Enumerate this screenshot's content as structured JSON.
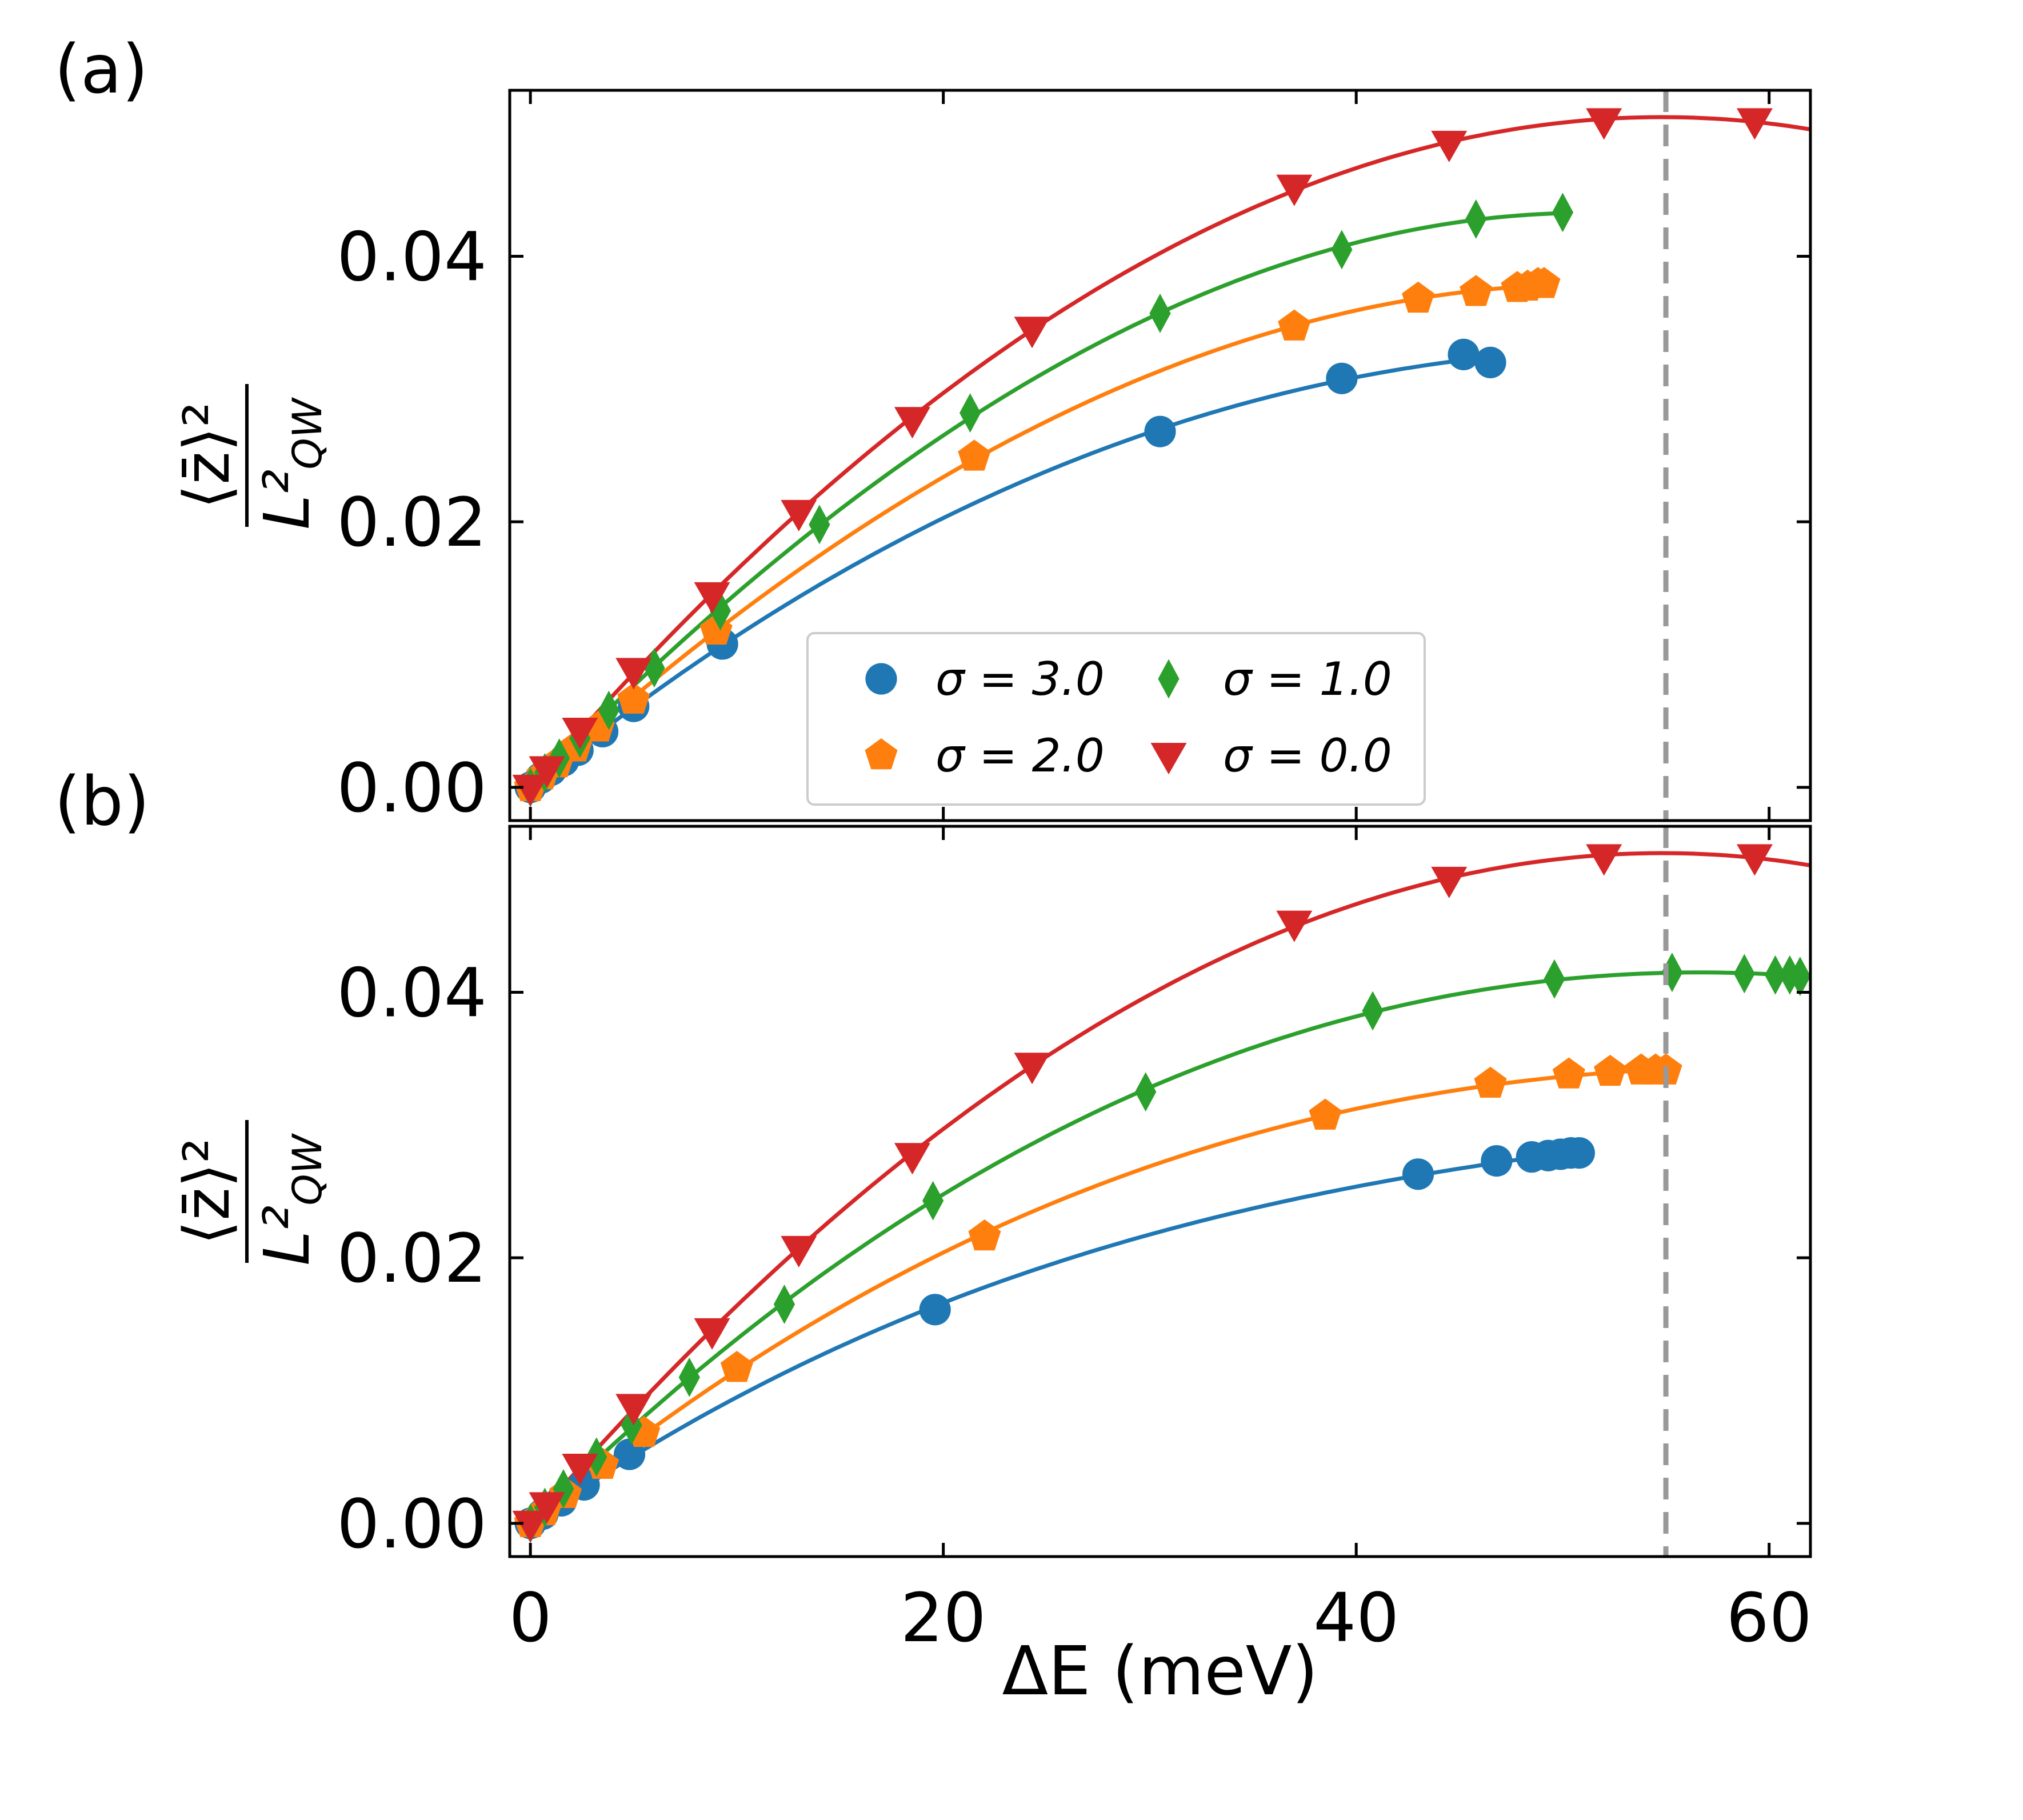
{
  "figure": {
    "xlabel": "ΔE (meV)",
    "ylabel_numerator": "⟨z̄⟩²",
    "ylabel_denominator": "L²",
    "ylabel_subscript": "QW",
    "dashed_line_x": 55,
    "dashed_line_color": "#999999"
  },
  "legend": {
    "entries": [
      {
        "label": "σ = 3.0",
        "color": "#1f77b4",
        "marker": "circle"
      },
      {
        "label": "σ = 1.0",
        "color": "#2ca02c",
        "marker": "diamond"
      },
      {
        "label": "σ = 2.0",
        "color": "#ff7f0e",
        "marker": "pentagon"
      },
      {
        "label": "σ = 0.0",
        "color": "#d62728",
        "marker": "triangle-down"
      }
    ]
  },
  "chart_data": [
    {
      "panel": "(a)",
      "type": "line",
      "xlim": [
        -1,
        62
      ],
      "ylim": [
        -0.0025,
        0.0525
      ],
      "xticks": [
        0,
        20,
        40,
        60
      ],
      "yticks": [
        0.0,
        0.02,
        0.04
      ],
      "ytick_labels": [
        "0.00",
        "0.02",
        "0.04"
      ],
      "series": [
        {
          "name": "σ = 3.0",
          "color": "#1f77b4",
          "marker": "circle",
          "points": [
            [
              0,
              0
            ],
            [
              0.5,
              0.0007
            ],
            [
              1.0,
              0.0013
            ],
            [
              1.6,
              0.002
            ],
            [
              2.3,
              0.0028
            ],
            [
              3.5,
              0.0042
            ],
            [
              5.0,
              0.0061
            ],
            [
              9.3,
              0.0108
            ],
            [
              30.5,
              0.0268
            ],
            [
              39.3,
              0.0308
            ],
            [
              45.2,
              0.0326
            ],
            [
              46.5,
              0.032
            ]
          ],
          "curve_x_end": 46.5
        },
        {
          "name": "σ = 2.0",
          "color": "#ff7f0e",
          "marker": "pentagon",
          "points": [
            [
              0,
              0
            ],
            [
              0.6,
              0.0009
            ],
            [
              1.3,
              0.0018
            ],
            [
              2.2,
              0.003
            ],
            [
              3.3,
              0.0045
            ],
            [
              5.0,
              0.0066
            ],
            [
              9.0,
              0.0118
            ],
            [
              21.5,
              0.0249
            ],
            [
              37.0,
              0.0347
            ],
            [
              43.0,
              0.0368
            ],
            [
              45.8,
              0.0373
            ],
            [
              47.8,
              0.0376
            ],
            [
              48.3,
              0.0377
            ],
            [
              48.8,
              0.0379
            ],
            [
              49.1,
              0.0379
            ]
          ],
          "curve_x_end": 49.1
        },
        {
          "name": "σ = 1.0",
          "color": "#2ca02c",
          "marker": "diamond",
          "points": [
            [
              0,
              0
            ],
            [
              0.7,
              0.0011
            ],
            [
              1.4,
              0.0022
            ],
            [
              2.4,
              0.0037
            ],
            [
              3.8,
              0.0058
            ],
            [
              6.0,
              0.009
            ],
            [
              9.2,
              0.0133
            ],
            [
              14.0,
              0.0198
            ],
            [
              21.3,
              0.0282
            ],
            [
              30.5,
              0.0357
            ],
            [
              39.3,
              0.0405
            ],
            [
              45.8,
              0.0428
            ],
            [
              50.0,
              0.0433
            ]
          ],
          "curve_x_end": 50.0
        },
        {
          "name": "σ = 0.0",
          "color": "#d62728",
          "marker": "triangle-down",
          "points": [
            [
              0,
              0
            ],
            [
              0.8,
              0.0014
            ],
            [
              2.4,
              0.0043
            ],
            [
              5.0,
              0.0088
            ],
            [
              8.8,
              0.0145
            ],
            [
              13.0,
              0.0207
            ],
            [
              18.5,
              0.0277
            ],
            [
              24.3,
              0.0345
            ],
            [
              37.0,
              0.0452
            ],
            [
              44.5,
              0.0485
            ],
            [
              52.0,
              0.0502
            ],
            [
              59.3,
              0.0502
            ]
          ],
          "curve_x_end": 62.0
        }
      ]
    },
    {
      "panel": "(b)",
      "type": "line",
      "xlim": [
        -1,
        62
      ],
      "ylim": [
        -0.0025,
        0.0525
      ],
      "xticks": [
        0,
        20,
        40,
        60
      ],
      "xtick_labels": [
        "0",
        "20",
        "40",
        "60"
      ],
      "yticks": [
        0.0,
        0.02,
        0.04
      ],
      "ytick_labels": [
        "0.00",
        "0.02",
        "0.04"
      ],
      "series": [
        {
          "name": "σ = 3.0",
          "color": "#1f77b4",
          "marker": "circle",
          "points": [
            [
              0,
              0
            ],
            [
              0.6,
              0.0007
            ],
            [
              1.5,
              0.0017
            ],
            [
              2.6,
              0.0029
            ],
            [
              4.8,
              0.0052
            ],
            [
              19.6,
              0.0161
            ],
            [
              43.0,
              0.0263
            ],
            [
              46.8,
              0.0273
            ],
            [
              48.5,
              0.0276
            ],
            [
              49.3,
              0.0277
            ],
            [
              49.9,
              0.0278
            ],
            [
              50.4,
              0.0279
            ],
            [
              50.8,
              0.0279
            ]
          ],
          "curve_x_end": 50.8
        },
        {
          "name": "σ = 2.0",
          "color": "#ff7f0e",
          "marker": "pentagon",
          "points": [
            [
              0,
              0
            ],
            [
              0.7,
              0.0009
            ],
            [
              1.7,
              0.0022
            ],
            [
              3.5,
              0.0044
            ],
            [
              5.5,
              0.0068
            ],
            [
              10.0,
              0.0117
            ],
            [
              22.0,
              0.0216
            ],
            [
              38.5,
              0.0307
            ],
            [
              46.5,
              0.0331
            ],
            [
              50.3,
              0.0338
            ],
            [
              52.3,
              0.034
            ],
            [
              53.8,
              0.0341
            ],
            [
              54.5,
              0.0341
            ],
            [
              55.0,
              0.0341
            ]
          ],
          "curve_x_end": 55.0
        },
        {
          "name": "σ = 1.0",
          "color": "#2ca02c",
          "marker": "diamond",
          "points": [
            [
              0,
              0
            ],
            [
              0.7,
              0.0012
            ],
            [
              1.6,
              0.0026
            ],
            [
              3.2,
              0.005
            ],
            [
              4.9,
              0.0074
            ],
            [
              7.7,
              0.011
            ],
            [
              12.3,
              0.0165
            ],
            [
              19.5,
              0.0243
            ],
            [
              29.8,
              0.0325
            ],
            [
              40.8,
              0.0386
            ],
            [
              49.6,
              0.041
            ],
            [
              55.3,
              0.0415
            ],
            [
              58.8,
              0.0414
            ],
            [
              60.3,
              0.0413
            ],
            [
              61.0,
              0.0413
            ],
            [
              61.5,
              0.0412
            ]
          ],
          "curve_x_end": 61.5
        },
        {
          "name": "σ = 0.0",
          "color": "#d62728",
          "marker": "triangle-down",
          "points": [
            [
              0,
              0
            ],
            [
              0.8,
              0.0014
            ],
            [
              2.4,
              0.0043
            ],
            [
              5.0,
              0.0088
            ],
            [
              8.8,
              0.0145
            ],
            [
              13.0,
              0.0207
            ],
            [
              18.5,
              0.0277
            ],
            [
              24.3,
              0.0345
            ],
            [
              37.0,
              0.0452
            ],
            [
              44.5,
              0.0485
            ],
            [
              52.0,
              0.0502
            ],
            [
              59.3,
              0.0502
            ]
          ],
          "curve_x_end": 62.0
        }
      ]
    }
  ]
}
